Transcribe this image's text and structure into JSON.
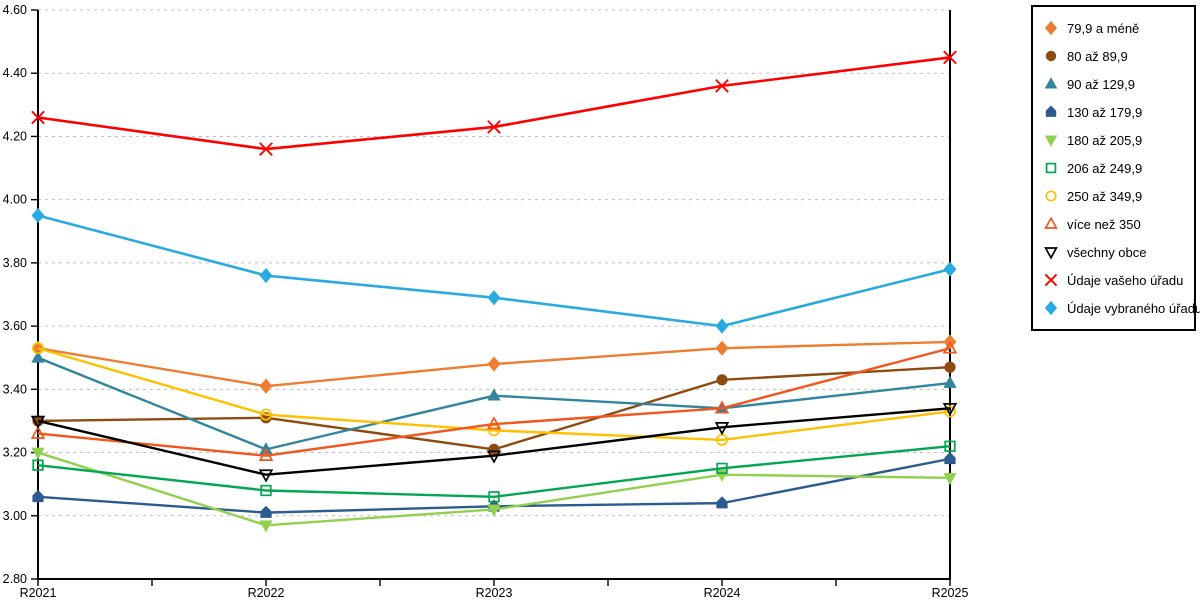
{
  "chart_data": {
    "type": "line",
    "title": "",
    "xlabel": "",
    "ylabel": "",
    "categories": [
      "R2021",
      "R2022",
      "R2023",
      "R2024",
      "R2025"
    ],
    "ylim": [
      2.8,
      4.6
    ],
    "y_tick_step": 0.2,
    "y_ticks": [
      "4.60",
      "4.40",
      "4.20",
      "4.00",
      "3.80",
      "3.60",
      "3.40",
      "3.20",
      "3.00",
      "2.80"
    ],
    "grid": "horizontal-dashed",
    "legend_position": "right-outside",
    "series": [
      {
        "name": "79,9 a méně",
        "color": "#ED7D31",
        "marker": "diamond",
        "values": [
          3.53,
          3.41,
          3.48,
          3.53,
          3.55
        ]
      },
      {
        "name": "80 až 89,9",
        "color": "#8E4B10",
        "marker": "circle",
        "values": [
          3.3,
          3.31,
          3.21,
          3.43,
          3.47
        ]
      },
      {
        "name": "90 až 129,9",
        "color": "#31859C",
        "marker": "triangle",
        "values": [
          3.5,
          3.21,
          3.38,
          3.34,
          3.42
        ]
      },
      {
        "name": "130 až 179,9",
        "color": "#2E5B8F",
        "marker": "pentagon",
        "values": [
          3.06,
          3.01,
          3.03,
          3.04,
          3.18
        ]
      },
      {
        "name": "180 až 205,9",
        "color": "#92D050",
        "marker": "triangle-down",
        "values": [
          3.2,
          2.97,
          3.02,
          3.13,
          3.12
        ]
      },
      {
        "name": "206 až 249,9",
        "color": "#00A651",
        "marker": "square-open",
        "values": [
          3.16,
          3.08,
          3.06,
          3.15,
          3.22
        ]
      },
      {
        "name": "250 až 349,9",
        "color": "#FFC000",
        "marker": "circle-open",
        "values": [
          3.53,
          3.32,
          3.27,
          3.24,
          3.33
        ]
      },
      {
        "name": "více než 350",
        "color": "#F0561D",
        "marker": "triangle-open",
        "values": [
          3.26,
          3.19,
          3.29,
          3.34,
          3.53
        ]
      },
      {
        "name": "všechny obce",
        "color": "#000000",
        "marker": "triangle-down-open",
        "values": [
          3.3,
          3.13,
          3.19,
          3.28,
          3.34
        ]
      },
      {
        "name": "Údaje vašeho úřadu",
        "color": "#FF0000",
        "marker": "x",
        "values": [
          4.26,
          4.16,
          4.23,
          4.36,
          4.45
        ]
      },
      {
        "name": "Údaje vybraného úřadu",
        "color": "#29ABE2",
        "marker": "diamond",
        "values": [
          3.95,
          3.76,
          3.69,
          3.6,
          3.78
        ]
      }
    ]
  }
}
